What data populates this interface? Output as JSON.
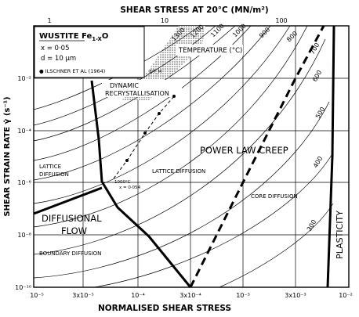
{
  "chart_data": {
    "type": "deformation-mechanism-map",
    "title": "",
    "top_axis_label": "SHEAR STRESS AT 20°C (MN/m²)",
    "top_ticks": [
      "1",
      "10",
      "100"
    ],
    "xlabel": "NORMALISED SHEAR STRESS",
    "x_ticks": [
      "10⁻⁵",
      "3x10⁻⁵",
      "10⁻⁴",
      "3x10⁻⁴",
      "10⁻³",
      "3x10⁻³",
      "10⁻²"
    ],
    "ylabel": "SHEAR STRAIN RATE γ̇ (s⁻¹)",
    "y_ticks": [
      "10⁻²",
      "10⁻⁴",
      "10⁻⁶",
      "10⁻⁸",
      "10⁻¹⁰"
    ],
    "legend": {
      "material": "WUSTITE Fe",
      "material_sub": "1-X",
      "material_o": "O",
      "composition": "x = 0·05",
      "grain_size": "d = 10 μm",
      "data_source": "● ILSCHNER ET AL (1964)"
    },
    "regions": {
      "power_law_creep": "POWER LAW CREEP",
      "diffusional_flow_1": "DIFFUSIONAL",
      "diffusional_flow_2": "FLOW",
      "plasticity": "PLASTICITY",
      "dynamic_recrystallisation_1": "DYNAMIC",
      "dynamic_recrystallisation_2": "RECRYSTALLISATION"
    },
    "subregions": {
      "lattice_diffusion_power_law": "LATTICE DIFFUSION",
      "core_diffusion": "CORE DIFFUSION",
      "lattice_diffusion_diffusional_1": "LATTICE",
      "lattice_diffusion_diffusional_2": "DIFFUSION",
      "boundary_diffusion": "BOUNDARY DIFFUSION"
    },
    "temperature_label": "TEMPERATURE (°C)",
    "temperature_contours": [
      "1300",
      "1200",
      "1100",
      "1000",
      "900",
      "800",
      "700",
      "600",
      "500",
      "400",
      "300"
    ],
    "melting_fraction_label": "3/T_M",
    "data_point_note_1": "1000°C",
    "data_point_note_2": "x = 0·054"
  }
}
